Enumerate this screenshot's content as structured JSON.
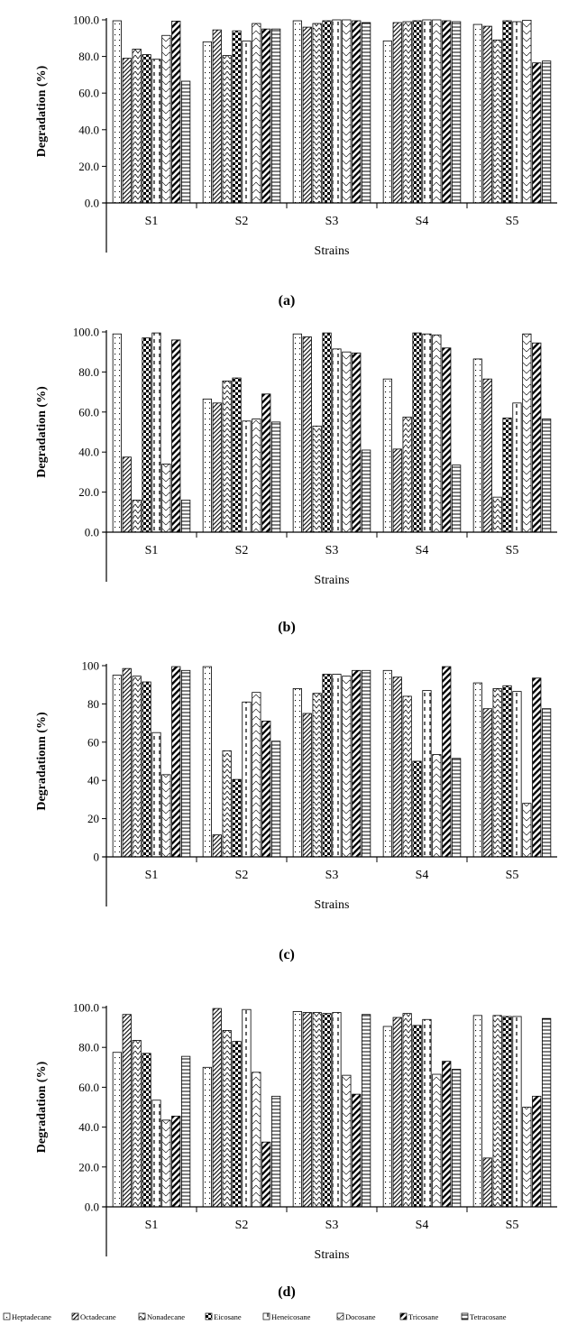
{
  "figure": {
    "legend": [
      "Heptadecane",
      "Octadecane",
      "Nonadecane",
      "Eicosane",
      "Heneicosane",
      "Docosane",
      "Tricosane",
      "Tetracosane"
    ]
  },
  "chart_data": [
    {
      "type": "bar",
      "panel_label": "(a)",
      "xlabel": "Strains",
      "ylabel": "Degradation (%)",
      "ylim": [
        0,
        100
      ],
      "yticks": [
        "0.0",
        "20.0",
        "40.0",
        "60.0",
        "80.0",
        "100.0"
      ],
      "categories": [
        "S1",
        "S2",
        "S3",
        "S4",
        "S5"
      ],
      "series": [
        {
          "name": "Heptadecane",
          "values": [
            99.5,
            88,
            99.5,
            88.5,
            97.5
          ]
        },
        {
          "name": "Octadecane",
          "values": [
            79,
            94.5,
            96,
            98.5,
            96.5
          ]
        },
        {
          "name": "Nonadecane",
          "values": [
            84,
            80.5,
            98,
            99,
            89
          ]
        },
        {
          "name": "Eicosane",
          "values": [
            81,
            94,
            99.5,
            99.5,
            99.5
          ]
        },
        {
          "name": "Heneicosane",
          "values": [
            78.5,
            88.5,
            100,
            100,
            99
          ]
        },
        {
          "name": "Docosane",
          "values": [
            91.5,
            98,
            100,
            100,
            99.8
          ]
        },
        {
          "name": "Tricosane",
          "values": [
            99.3,
            95,
            99.5,
            99.5,
            76.5
          ]
        },
        {
          "name": "Tetracosane",
          "values": [
            66.5,
            95,
            98.5,
            99,
            77.5
          ]
        }
      ]
    },
    {
      "type": "bar",
      "panel_label": "(b)",
      "xlabel": "Strains",
      "ylabel": "Degradation (%)",
      "ylim": [
        0,
        100
      ],
      "yticks": [
        "0.0",
        "20.0",
        "40.0",
        "60.0",
        "80.0",
        "100.0"
      ],
      "categories": [
        "S1",
        "S2",
        "S3",
        "S4",
        "S5"
      ],
      "series": [
        {
          "name": "Heptadecane",
          "values": [
            99,
            66.5,
            99,
            76.5,
            86.5
          ]
        },
        {
          "name": "Octadecane",
          "values": [
            37.5,
            64.5,
            97.5,
            41.5,
            76.5
          ]
        },
        {
          "name": "Nonadecane",
          "values": [
            16,
            75.5,
            53,
            57.5,
            17.5
          ]
        },
        {
          "name": "Eicosane",
          "values": [
            97,
            77,
            99.5,
            99.5,
            57
          ]
        },
        {
          "name": "Heneicosane",
          "values": [
            99.5,
            55.5,
            91.5,
            99,
            64.5
          ]
        },
        {
          "name": "Docosane",
          "values": [
            34,
            56.5,
            90,
            98.5,
            99
          ]
        },
        {
          "name": "Tricosane",
          "values": [
            96,
            69,
            89.5,
            92,
            94.5
          ]
        },
        {
          "name": "Tetracosane",
          "values": [
            16,
            55,
            41,
            33.5,
            56.5
          ]
        }
      ]
    },
    {
      "type": "bar",
      "panel_label": "(c)",
      "xlabel": "Strains",
      "ylabel": "Degradationn (%)",
      "ylim": [
        0,
        100
      ],
      "yticks": [
        "0",
        "20",
        "40",
        "60",
        "80",
        "100"
      ],
      "categories": [
        "S1",
        "S2",
        "S3",
        "S4",
        "S5"
      ],
      "series": [
        {
          "name": "Heptadecane",
          "values": [
            95,
            99.5,
            88,
            97.5,
            91
          ]
        },
        {
          "name": "Octadecane",
          "values": [
            98.5,
            11.5,
            75,
            94,
            77.5
          ]
        },
        {
          "name": "Nonadecane",
          "values": [
            94.5,
            55.5,
            85.5,
            84,
            88
          ]
        },
        {
          "name": "Eicosane",
          "values": [
            91.5,
            40.5,
            95.5,
            50,
            89.5
          ]
        },
        {
          "name": "Heneicosane",
          "values": [
            65,
            81,
            95.5,
            87,
            86.5
          ]
        },
        {
          "name": "Docosane",
          "values": [
            43,
            86,
            94.5,
            53.5,
            28
          ]
        },
        {
          "name": "Tricosane",
          "values": [
            99.5,
            71,
            97.5,
            99.5,
            93.5
          ]
        },
        {
          "name": "Tetracosane",
          "values": [
            97.5,
            60.5,
            97.5,
            51.5,
            77.5
          ]
        }
      ]
    },
    {
      "type": "bar",
      "panel_label": "(d)",
      "xlabel": "Strains",
      "ylabel": "Degradation (%)",
      "ylim": [
        0,
        100
      ],
      "yticks": [
        "0.0",
        "20.0",
        "40.0",
        "60.0",
        "80.0",
        "100.0"
      ],
      "categories": [
        "S1",
        "S2",
        "S3",
        "S4",
        "S5"
      ],
      "series": [
        {
          "name": "Heptadecane",
          "values": [
            77.5,
            70,
            98,
            90.5,
            96
          ]
        },
        {
          "name": "Octadecane",
          "values": [
            96.5,
            99.5,
            97.5,
            95,
            24.5
          ]
        },
        {
          "name": "Nonadecane",
          "values": [
            83.5,
            88.5,
            97.5,
            97,
            96
          ]
        },
        {
          "name": "Eicosane",
          "values": [
            77,
            83,
            97,
            91,
            95.5
          ]
        },
        {
          "name": "Heneicosane",
          "values": [
            53.5,
            99,
            97.5,
            94,
            95.5
          ]
        },
        {
          "name": "Docosane",
          "values": [
            43.5,
            67.5,
            66,
            66.5,
            50
          ]
        },
        {
          "name": "Tricosane",
          "values": [
            45.5,
            32.5,
            56.5,
            73,
            55.5
          ]
        },
        {
          "name": "Tetracosane",
          "values": [
            75.5,
            55.5,
            96.5,
            69,
            94.5
          ]
        }
      ]
    }
  ]
}
